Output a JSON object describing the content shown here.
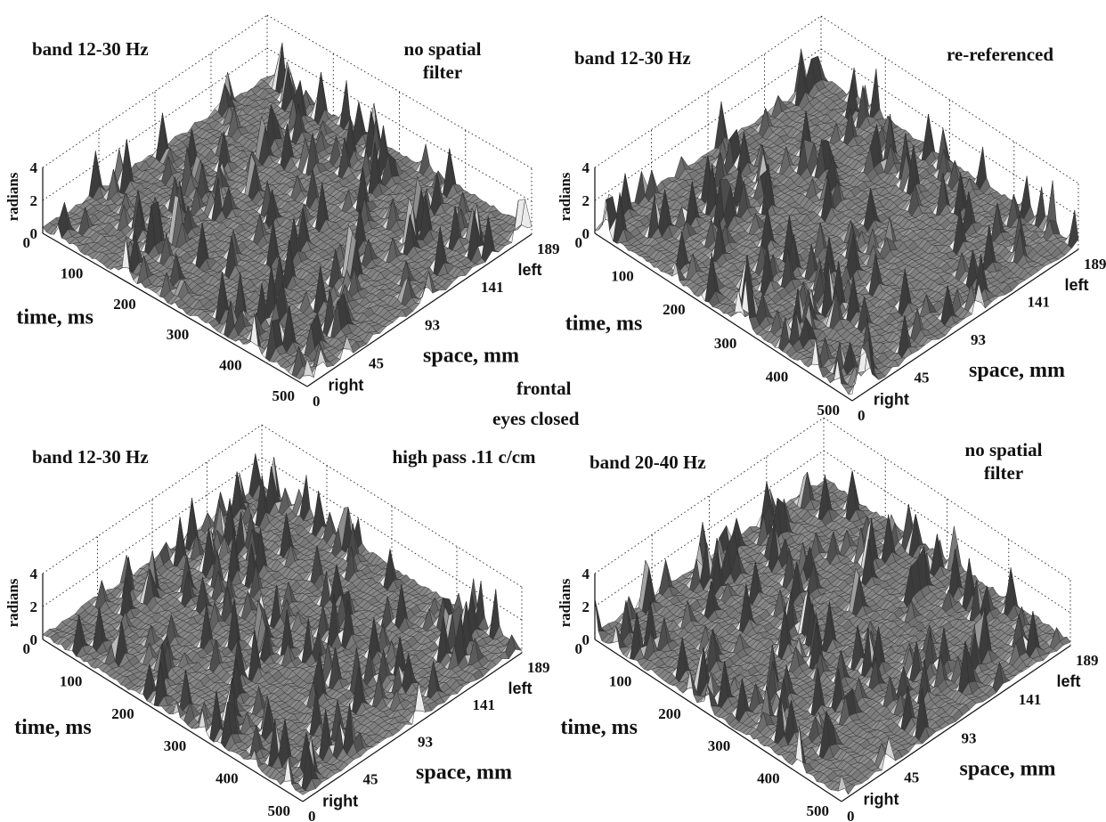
{
  "center_labels": {
    "line1": "frontal",
    "line2": "eyes closed"
  },
  "chart_data": [
    {
      "type": "surface",
      "band_label": "band 12-30 Hz",
      "filter_label_lines": [
        "no spatial",
        "filter"
      ],
      "zlabel": "radians",
      "z_ticks": [
        "4",
        "2",
        "0"
      ],
      "zlim": [
        0,
        4
      ],
      "xlabel": "time, ms",
      "x_ticks": [
        "0",
        "100",
        "200",
        "300",
        "400",
        "500"
      ],
      "xlim": [
        0,
        500
      ],
      "ylabel": "space, mm",
      "y_ticks": [
        "0",
        "45",
        "93",
        "141",
        "189"
      ],
      "ylim": [
        0,
        189
      ],
      "y_end_labels": {
        "low": "right",
        "high": "left"
      },
      "colors": {
        "surface_dark": "#2e2e2e",
        "surface_light": "#e6e6e6"
      }
    },
    {
      "type": "surface",
      "band_label": "band 12-30 Hz",
      "filter_label_lines": [
        "re-referenced"
      ],
      "zlabel": "radians",
      "z_ticks": [
        "4",
        "2",
        "0"
      ],
      "zlim": [
        0,
        4
      ],
      "xlabel": "time, ms",
      "x_ticks": [
        "0",
        "100",
        "200",
        "300",
        "400",
        "500"
      ],
      "xlim": [
        0,
        500
      ],
      "ylabel": "space, mm",
      "y_ticks": [
        "0",
        "45",
        "93",
        "141",
        "189"
      ],
      "ylim": [
        0,
        189
      ],
      "y_end_labels": {
        "low": "right",
        "high": "left"
      },
      "colors": {
        "surface_dark": "#2e2e2e",
        "surface_light": "#e6e6e6"
      }
    },
    {
      "type": "surface",
      "band_label": "band 12-30 Hz",
      "filter_label_lines": [
        "high pass  .11 c/cm"
      ],
      "zlabel": "radians",
      "z_ticks": [
        "4",
        "2",
        "0"
      ],
      "zlim": [
        0,
        4
      ],
      "xlabel": "time, ms",
      "x_ticks": [
        "0",
        "100",
        "200",
        "300",
        "400",
        "500"
      ],
      "xlim": [
        0,
        500
      ],
      "ylabel": "space, mm",
      "y_ticks": [
        "0",
        "45",
        "93",
        "141",
        "189"
      ],
      "ylim": [
        0,
        189
      ],
      "y_end_labels": {
        "low": "right",
        "high": "left"
      },
      "colors": {
        "surface_dark": "#2e2e2e",
        "surface_light": "#e6e6e6"
      }
    },
    {
      "type": "surface",
      "band_label": "band 20-40 Hz",
      "filter_label_lines": [
        "no spatial",
        "filter"
      ],
      "zlabel": "radians",
      "z_ticks": [
        "4",
        "2",
        "0"
      ],
      "zlim": [
        0,
        4
      ],
      "xlabel": "time, ms",
      "x_ticks": [
        "0",
        "100",
        "200",
        "300",
        "400",
        "500"
      ],
      "xlim": [
        0,
        500
      ],
      "ylabel": "space, mm",
      "y_ticks": [
        "0",
        "45",
        "93",
        "141",
        "189"
      ],
      "ylim": [
        0,
        189
      ],
      "y_end_labels": {
        "low": "right",
        "high": "left"
      },
      "colors": {
        "surface_dark": "#2e2e2e",
        "surface_light": "#e6e6e6"
      }
    }
  ]
}
